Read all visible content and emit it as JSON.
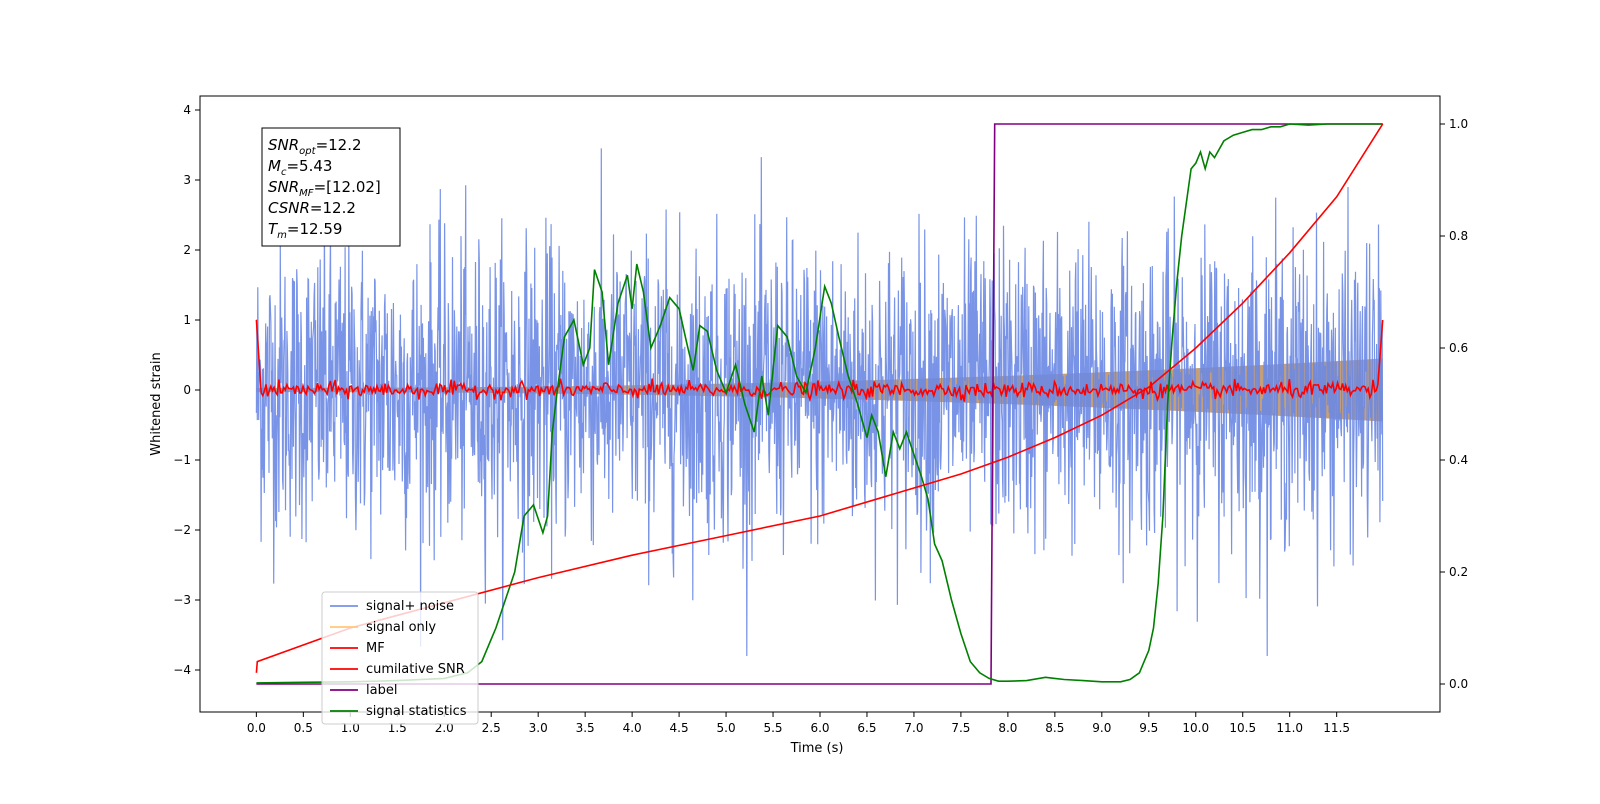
{
  "chart_data": {
    "type": "line",
    "xlabel": "Time (s)",
    "ylabel": "Whitened strain",
    "xlim": [
      -0.6,
      12.6
    ],
    "ylim": [
      -4.6,
      4.2
    ],
    "y2lim": [
      -0.05,
      1.05
    ],
    "x_ticks": [
      0.0,
      0.5,
      1.0,
      1.5,
      2.0,
      2.5,
      3.0,
      3.5,
      4.0,
      4.5,
      5.0,
      5.5,
      6.0,
      6.5,
      7.0,
      7.5,
      8.0,
      8.5,
      9.0,
      9.5,
      10.0,
      10.5,
      11.0,
      11.5
    ],
    "x_tick_labels": [
      "0.0",
      "0.5",
      "1.0",
      "1.5",
      "2.0",
      "2.5",
      "3.0",
      "3.5",
      "4.0",
      "4.5",
      "5.0",
      "5.5",
      "6.0",
      "6.5",
      "7.0",
      "7.5",
      "8.0",
      "8.5",
      "9.0",
      "9.5",
      "10.0",
      "10.5",
      "11.0",
      "11.5"
    ],
    "y_ticks": [
      4,
      3,
      2,
      1,
      0,
      -1,
      -2,
      -3,
      -4
    ],
    "y_tick_labels": [
      "4",
      "3",
      "2",
      "1",
      "0",
      "−1",
      "−2",
      "−3",
      "−4"
    ],
    "y2_ticks": [
      1.0,
      0.8,
      0.6,
      0.4,
      0.2,
      0.0
    ],
    "y2_tick_labels": [
      "1.0",
      "0.8",
      "0.6",
      "0.4",
      "0.2",
      "0.0"
    ],
    "grid": false,
    "legend_position": "lower-left",
    "annotation_box": {
      "lines": [
        {
          "symbol": "SNR",
          "sub": "opt",
          "value": "=12.2"
        },
        {
          "symbol": "M",
          "sub": "c",
          "value": "=5.43"
        },
        {
          "symbol": "SNR",
          "sub": "MF",
          "value": "=[12.02]"
        },
        {
          "symbol": "CSNR",
          "sub": "",
          "value": "=12.2"
        },
        {
          "symbol": "T",
          "sub": "m",
          "value": "=12.59"
        }
      ]
    },
    "series": [
      {
        "name": "signal+ noise",
        "color": "#6a88e4",
        "axis": "left",
        "description": "whitened noise, amplitude approx ±2 with spikes to about ±3.8",
        "x_range": [
          0.0,
          11.99
        ],
        "typical_amplitude": 1.7,
        "max_abs": 3.8
      },
      {
        "name": "signal only",
        "color": "#ffc87a",
        "axis": "left",
        "description": "chirp envelope growing from ±0.03 to ±0.45",
        "x_range": [
          0.0,
          11.99
        ],
        "envelope_start": 0.03,
        "envelope_end": 0.45
      },
      {
        "name": "MF",
        "color": "#ff0000",
        "axis": "left",
        "description": "matched filter output hovering around 0 (±0.1), reaching 1.0 at both ends",
        "x_range": [
          0.0,
          11.99
        ],
        "noise_amplitude": 0.1,
        "edge_value": 1.0
      },
      {
        "name": "cumilative SNR",
        "color": "#ff0000",
        "axis": "right",
        "x": [
          0.0,
          0.01,
          1.0,
          2.0,
          3.0,
          4.0,
          5.0,
          6.0,
          7.0,
          7.5,
          8.0,
          8.5,
          9.0,
          9.5,
          10.0,
          10.5,
          11.0,
          11.5,
          11.99
        ],
        "values": [
          0.02,
          0.04,
          0.1,
          0.145,
          0.19,
          0.23,
          0.265,
          0.3,
          0.35,
          0.375,
          0.405,
          0.44,
          0.48,
          0.53,
          0.6,
          0.68,
          0.77,
          0.87,
          1.0
        ]
      },
      {
        "name": "label",
        "color": "#800080",
        "axis": "right",
        "x": [
          0.0,
          7.82,
          7.86,
          11.99
        ],
        "values": [
          0.0,
          0.0,
          1.0,
          1.0
        ]
      },
      {
        "name": "signal statistics",
        "color": "#008000",
        "axis": "right",
        "x": [
          0.0,
          0.5,
          1.0,
          1.5,
          2.0,
          2.25,
          2.4,
          2.55,
          2.65,
          2.75,
          2.85,
          2.95,
          3.05,
          3.1,
          3.15,
          3.2,
          3.28,
          3.38,
          3.48,
          3.55,
          3.6,
          3.68,
          3.75,
          3.85,
          3.95,
          4.0,
          4.05,
          4.12,
          4.2,
          4.3,
          4.4,
          4.5,
          4.58,
          4.65,
          4.72,
          4.8,
          4.9,
          5.0,
          5.1,
          5.2,
          5.3,
          5.38,
          5.45,
          5.55,
          5.65,
          5.75,
          5.85,
          5.95,
          6.05,
          6.12,
          6.2,
          6.3,
          6.4,
          6.5,
          6.55,
          6.62,
          6.7,
          6.78,
          6.85,
          6.92,
          7.0,
          7.08,
          7.15,
          7.22,
          7.3,
          7.4,
          7.5,
          7.6,
          7.7,
          7.8,
          7.9,
          8.0,
          8.2,
          8.4,
          8.5,
          8.6,
          8.8,
          9.0,
          9.2,
          9.3,
          9.4,
          9.5,
          9.55,
          9.6,
          9.65,
          9.7,
          9.75,
          9.8,
          9.85,
          9.9,
          9.95,
          10.0,
          10.05,
          10.1,
          10.15,
          10.2,
          10.3,
          10.4,
          10.5,
          10.6,
          10.7,
          10.8,
          10.9,
          11.0,
          11.2,
          11.4,
          11.6,
          11.8,
          11.99
        ],
        "values": [
          0.002,
          0.003,
          0.004,
          0.006,
          0.01,
          0.02,
          0.04,
          0.1,
          0.15,
          0.2,
          0.3,
          0.32,
          0.27,
          0.3,
          0.45,
          0.52,
          0.62,
          0.65,
          0.57,
          0.6,
          0.74,
          0.7,
          0.57,
          0.68,
          0.73,
          0.67,
          0.75,
          0.7,
          0.6,
          0.64,
          0.69,
          0.67,
          0.61,
          0.56,
          0.64,
          0.63,
          0.56,
          0.52,
          0.57,
          0.5,
          0.45,
          0.55,
          0.48,
          0.64,
          0.62,
          0.55,
          0.52,
          0.6,
          0.71,
          0.68,
          0.62,
          0.55,
          0.5,
          0.44,
          0.48,
          0.45,
          0.37,
          0.45,
          0.42,
          0.45,
          0.41,
          0.37,
          0.33,
          0.25,
          0.22,
          0.15,
          0.09,
          0.04,
          0.02,
          0.01,
          0.005,
          0.005,
          0.006,
          0.012,
          0.01,
          0.008,
          0.006,
          0.004,
          0.004,
          0.008,
          0.02,
          0.06,
          0.1,
          0.18,
          0.3,
          0.5,
          0.62,
          0.72,
          0.8,
          0.86,
          0.92,
          0.93,
          0.95,
          0.92,
          0.95,
          0.94,
          0.97,
          0.98,
          0.985,
          0.99,
          0.99,
          0.995,
          0.995,
          1.0,
          0.998,
          1.0,
          1.0,
          1.0,
          1.0
        ]
      }
    ]
  }
}
